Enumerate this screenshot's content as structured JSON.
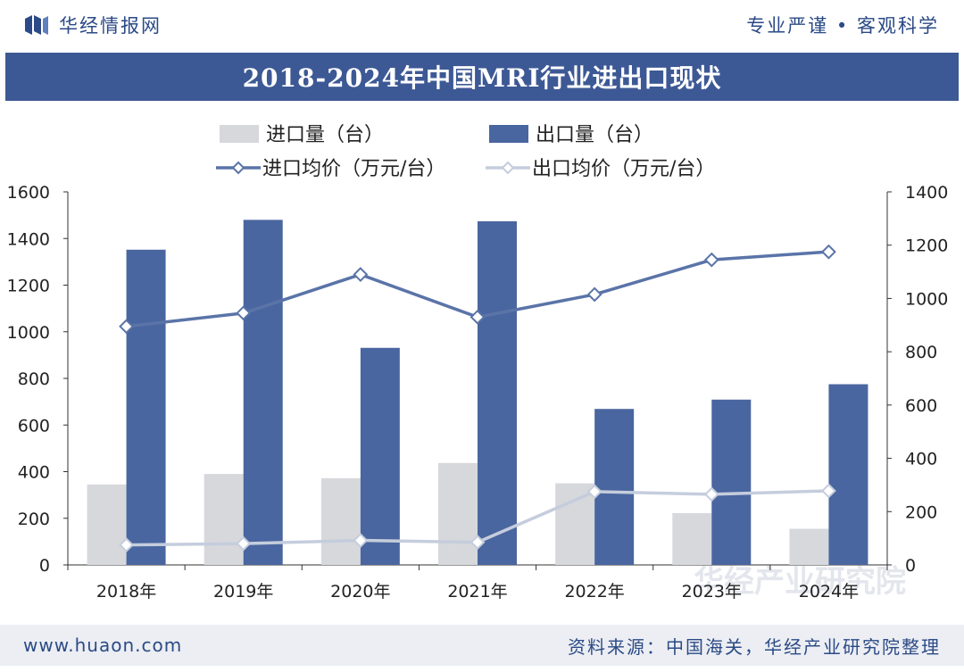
{
  "header": {
    "brand": "华经情报网",
    "slogan": "专业严谨 • 客观科学"
  },
  "footer": {
    "site": "www.huaon.com",
    "source": "资料来源：中国海关，华经产业研究院整理"
  },
  "watermark": "华经产业研究院",
  "colors": {
    "title_band": "#3d5995",
    "import_bar": "#d6d8dc",
    "export_bar": "#4a66a0",
    "import_price_line": "#5a74a8",
    "export_price_line": "#c5cddd",
    "text": "#2b4a86"
  },
  "chart_data": {
    "type": "bar",
    "title": "2018-2024年中国MRI行业进出口现状",
    "categories": [
      "2018年",
      "2019年",
      "2020年",
      "2021年",
      "2022年",
      "2023年",
      "2024年"
    ],
    "series": [
      {
        "name": "进口量（台）",
        "type": "bar",
        "axis": "left",
        "values": [
          345,
          390,
          372,
          437,
          350,
          222,
          155
        ]
      },
      {
        "name": "出口量（台）",
        "type": "bar",
        "axis": "left",
        "values": [
          1352,
          1480,
          931,
          1474,
          669,
          709,
          775
        ]
      },
      {
        "name": "进口均价（万元/台）",
        "type": "line",
        "axis": "right",
        "values": [
          895,
          945,
          1090,
          930,
          1015,
          1145,
          1175
        ]
      },
      {
        "name": "出口均价（万元/台）",
        "type": "line",
        "axis": "right",
        "values": [
          75,
          80,
          92,
          85,
          275,
          265,
          278
        ]
      }
    ],
    "y_left": {
      "min": 0,
      "max": 1600,
      "ticks": [
        0,
        200,
        400,
        600,
        800,
        1000,
        1200,
        1400,
        1600
      ]
    },
    "y_right": {
      "min": 0,
      "max": 1400,
      "ticks": [
        0,
        200,
        400,
        600,
        800,
        1000,
        1200,
        1400
      ]
    },
    "grid": false,
    "legend": "top-center"
  }
}
